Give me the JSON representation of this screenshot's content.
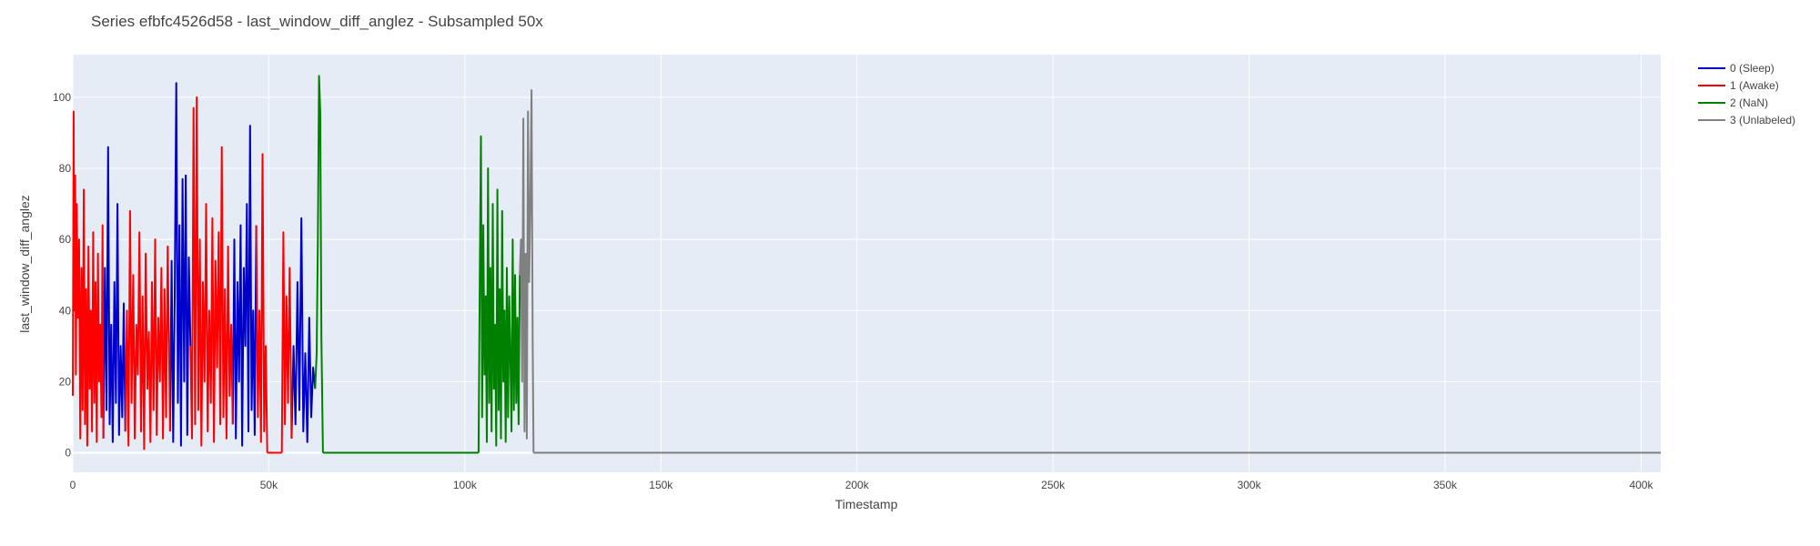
{
  "chart_data": {
    "type": "line",
    "title": "Series efbfc4526d58 - last_window_diff_anglez - Subsampled 50x",
    "xlabel": "Timestamp",
    "ylabel": "last_window_diff_anglez",
    "xlim": [
      0,
      405000
    ],
    "ylim": [
      -5.5,
      112
    ],
    "x_ticks": [
      0,
      50000,
      100000,
      150000,
      200000,
      250000,
      300000,
      350000,
      400000
    ],
    "x_tick_labels": [
      "0",
      "50k",
      "100k",
      "150k",
      "200k",
      "250k",
      "300k",
      "350k",
      "400k"
    ],
    "y_ticks": [
      0,
      20,
      40,
      60,
      80,
      100
    ],
    "y_tick_labels": [
      "0",
      "20",
      "40",
      "60",
      "80",
      "100"
    ],
    "grid": true,
    "legend_position": "top-right outside",
    "plot_bg": "#e5ecf6",
    "series": [
      {
        "name": "0 (Sleep)",
        "color": "#0000cc",
        "segments": [
          {
            "x": [
              7800,
              8200,
              8600,
              9000,
              9400,
              9800,
              10200,
              10600,
              11000,
              11400,
              11800,
              12200,
              12600,
              13000,
              13400
            ],
            "y": [
              4,
              52,
              12,
              86,
              8,
              36,
              3,
              48,
              14,
              70,
              5,
              30,
              10,
              42,
              6
            ]
          },
          {
            "x": [
              24800,
              25200,
              25600,
              26000,
              26400,
              26800,
              27200,
              27600,
              28000,
              28400,
              28800,
              29200,
              29600,
              30000
            ],
            "y": [
              6,
              54,
              3,
              44,
              104,
              14,
              64,
              2,
              77,
              20,
              78,
              5,
              55,
              30
            ]
          },
          {
            "x": [
              40800,
              41200,
              41600,
              42000,
              42400,
              42800,
              43200,
              43600,
              44000,
              44400,
              44800,
              45200,
              45600,
              46000,
              46400,
              46800
            ],
            "y": [
              8,
              60,
              4,
              48,
              20,
              64,
              2,
              52,
              30,
              70,
              6,
              92,
              12,
              40,
              5,
              64
            ]
          },
          {
            "x": [
              55800,
              56300,
              56800,
              57300,
              57800,
              58300,
              58800,
              59300,
              59800,
              60300,
              60800,
              61300,
              61800
            ],
            "y": [
              4,
              30,
              8,
              48,
              12,
              66,
              6,
              28,
              3,
              38,
              10,
              24,
              18
            ]
          }
        ]
      },
      {
        "name": "1 (Awake)",
        "color": "#ff0000",
        "segments": [
          {
            "x": [
              0,
              200,
              400,
              600,
              800,
              1000,
              1300,
              1600,
              1900,
              2200,
              2500,
              2800,
              3100,
              3400,
              3700,
              4000,
              4300,
              4600,
              4900,
              5200,
              5500,
              5800,
              6100,
              6400,
              6700,
              7000,
              7300,
              7600,
              7800
            ],
            "y": [
              16,
              96,
              40,
              78,
              22,
              70,
              38,
              60,
              4,
              52,
              12,
              74,
              8,
              46,
              2,
              58,
              18,
              40,
              6,
              62,
              14,
              48,
              3,
              56,
              20,
              36,
              10,
              64,
              4
            ]
          },
          {
            "x": [
              13400,
              13800,
              14200,
              14600,
              15000,
              15400,
              15800,
              16200,
              16600,
              17000,
              17400,
              17800,
              18200,
              18600,
              19000,
              19400,
              19800,
              20200,
              20600,
              21000,
              21400,
              21800,
              22200,
              22600,
              23000,
              23400,
              23800,
              24200,
              24800
            ],
            "y": [
              6,
              40,
              2,
              68,
              14,
              50,
              4,
              36,
              22,
              62,
              6,
              44,
              1,
              56,
              18,
              34,
              3,
              48,
              12,
              60,
              5,
              38,
              20,
              52,
              4,
              46,
              10,
              58,
              6
            ]
          },
          {
            "x": [
              30000,
              30400,
              30800,
              31200,
              31600,
              32000,
              32400,
              32800,
              33200,
              33600,
              34000,
              34400,
              34800,
              35200,
              35600,
              36000,
              36400,
              36800,
              37200,
              37600,
              38000,
              38400,
              38800,
              39200,
              39600,
              40000,
              40400,
              40800
            ],
            "y": [
              30,
              4,
              97,
              8,
              100,
              12,
              60,
              2,
              48,
              20,
              70,
              6,
              40,
              14,
              66,
              3,
              54,
              24,
              62,
              8,
              86,
              10,
              46,
              4,
              58,
              16,
              36,
              8
            ]
          },
          {
            "x": [
              46800,
              47200,
              47600,
              48000,
              48400,
              48800,
              49200,
              49600
            ],
            "y": [
              64,
              10,
              40,
              3,
              84,
              6,
              30,
              0
            ]
          },
          {
            "x": [
              49600,
              53300
            ],
            "y": [
              0,
              0
            ]
          },
          {
            "x": [
              53300,
              53700,
              54100,
              54500,
              54900,
              55300,
              55800
            ],
            "y": [
              0,
              62,
              8,
              44,
              14,
              52,
              4
            ]
          }
        ]
      },
      {
        "name": "2 (NaN)",
        "color": "#008000",
        "segments": [
          {
            "x": [
              61800,
              62200,
              62500,
              62800,
              63100,
              63400,
              63800
            ],
            "y": [
              18,
              28,
              60,
              106,
              96,
              32,
              0
            ]
          },
          {
            "x": [
              63800,
              103500
            ],
            "y": [
              0,
              0
            ]
          },
          {
            "x": [
              103500,
              103800,
              104100,
              104400,
              104700,
              105000,
              105300,
              105600,
              105900,
              106200,
              106500,
              106800,
              107100,
              107400,
              107700,
              108000,
              108300,
              108600,
              108900,
              109200,
              109500,
              109800,
              110100,
              110400,
              110700,
              111000,
              111300,
              111600,
              111900,
              112200,
              112500,
              112800,
              113100,
              113400,
              113700,
              114000
            ],
            "y": [
              0,
              48,
              89,
              10,
              64,
              22,
              44,
              3,
              80,
              14,
              52,
              6,
              70,
              18,
              36,
              2,
              74,
              12,
              46,
              4,
              68,
              20,
              40,
              3,
              52,
              10,
              44,
              28,
              6,
              60,
              12,
              50,
              14,
              38,
              8,
              50
            ]
          }
        ]
      },
      {
        "name": "3 (Unlabeled)",
        "color": "#808080",
        "segments": [
          {
            "x": [
              114000,
              114300,
              114600,
              114900,
              115200,
              115500,
              115800,
              116100,
              116400,
              116700,
              117000,
              117300,
              117500
            ],
            "y": [
              50,
              60,
              20,
              94,
              6,
              56,
              4,
              96,
              48,
              70,
              102,
              30,
              0
            ]
          },
          {
            "x": [
              117500,
              405000
            ],
            "y": [
              0,
              0
            ]
          }
        ]
      }
    ]
  }
}
